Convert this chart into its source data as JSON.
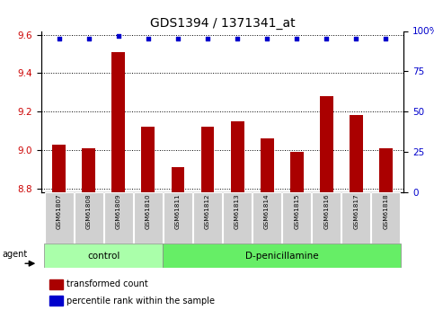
{
  "title": "GDS1394 / 1371341_at",
  "samples": [
    "GSM61807",
    "GSM61808",
    "GSM61809",
    "GSM61810",
    "GSM61811",
    "GSM61812",
    "GSM61813",
    "GSM61814",
    "GSM61815",
    "GSM61816",
    "GSM61817",
    "GSM61818"
  ],
  "bar_values": [
    9.03,
    9.01,
    9.51,
    9.12,
    8.91,
    9.12,
    9.15,
    9.06,
    8.99,
    9.28,
    9.18,
    9.01
  ],
  "percentile_values": [
    95,
    95,
    97,
    95,
    95,
    95,
    95,
    95,
    95,
    95,
    95,
    95
  ],
  "bar_color": "#aa0000",
  "percentile_color": "#0000cc",
  "ylim_left": [
    8.78,
    9.62
  ],
  "ylim_right": [
    0,
    100
  ],
  "yticks_left": [
    8.8,
    9.0,
    9.2,
    9.4,
    9.6
  ],
  "yticks_right": [
    0,
    25,
    50,
    75,
    100
  ],
  "control_indices": [
    0,
    1,
    2,
    3
  ],
  "dp_indices": [
    4,
    5,
    6,
    7,
    8,
    9,
    10,
    11
  ],
  "group_color_control": "#aaffaa",
  "group_color_dp": "#66ee66",
  "agent_label": "agent",
  "legend_items": [
    {
      "color": "#aa0000",
      "label": "transformed count"
    },
    {
      "color": "#0000cc",
      "label": "percentile rank within the sample"
    }
  ],
  "title_fontsize": 10,
  "axis_label_color_left": "#cc0000",
  "axis_label_color_right": "#0000cc",
  "bar_width": 0.45
}
